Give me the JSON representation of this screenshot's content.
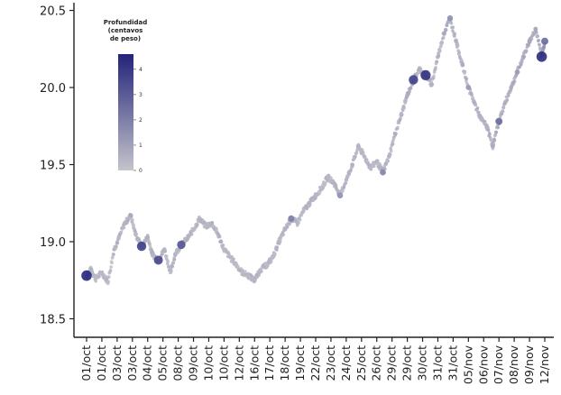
{
  "chart_data": {
    "type": "scatter",
    "title": "",
    "xlabel": "",
    "ylabel": "",
    "ylim": [
      18.38,
      20.55
    ],
    "yticks": [
      18.5,
      19.0,
      19.5,
      20.0,
      20.5
    ],
    "ytick_labels": [
      "18.5",
      "19.0",
      "19.5",
      "20.0",
      "20.5"
    ],
    "x_tick_labels": [
      "01/oct",
      "01/oct",
      "03/oct",
      "03/oct",
      "04/oct",
      "05/oct",
      "08/oct",
      "09/oct",
      "10/oct",
      "10/oct",
      "12/oct",
      "16/oct",
      "17/oct",
      "18/oct",
      "19/oct",
      "22/oct",
      "23/oct",
      "24/oct",
      "25/oct",
      "26/oct",
      "29/oct",
      "29/oct",
      "30/oct",
      "31/oct",
      "31/oct",
      "05/nov",
      "06/nov",
      "07/nov",
      "08/nov",
      "09/nov",
      "12/nov"
    ],
    "grid": false,
    "legend": {
      "title_lines": [
        "Profundidad",
        "(centavos",
        "de peso)"
      ],
      "ticks": [
        "0",
        "1",
        "2",
        "3",
        "4"
      ],
      "range": [
        0,
        4.6
      ],
      "placement": "top-left",
      "color_low": "#c4c4cc",
      "color_high": "#23237a"
    },
    "series": [
      {
        "x": [
          1.0,
          1.3,
          1.6,
          2.0,
          2.4,
          2.8,
          3.1,
          3.5,
          3.9,
          4.2,
          4.6,
          5.0,
          5.3,
          5.7,
          6.1,
          6.5,
          6.8,
          7.2,
          7.6,
          8.0,
          8.4,
          8.8,
          9.2,
          9.6,
          10.0,
          10.4,
          10.8,
          11.2,
          11.6,
          12.0,
          12.4,
          12.8,
          13.2,
          13.6,
          14.0,
          14.4,
          14.8,
          15.2,
          15.6,
          16.0,
          16.4,
          16.8,
          17.2,
          17.6,
          18.0,
          18.4,
          18.8,
          19.2,
          19.6,
          20.0,
          20.4,
          20.8,
          21.2,
          21.6,
          22.0,
          22.4,
          22.8,
          23.2,
          23.6,
          24.0,
          24.4,
          24.8,
          25.2,
          25.6,
          26.0,
          26.4,
          26.8,
          27.2,
          27.6,
          28.0,
          28.4,
          28.8,
          29.2,
          29.6,
          30.0,
          30.4,
          30.8,
          31.0
        ],
        "y": [
          18.78,
          18.82,
          18.76,
          18.8,
          18.74,
          18.95,
          19.02,
          19.12,
          19.17,
          19.05,
          18.97,
          19.03,
          18.92,
          18.88,
          18.95,
          18.8,
          18.92,
          18.98,
          19.02,
          19.08,
          19.15,
          19.1,
          19.12,
          19.05,
          18.95,
          18.9,
          18.85,
          18.8,
          18.78,
          18.75,
          18.82,
          18.85,
          18.9,
          19.0,
          19.08,
          19.15,
          19.12,
          19.2,
          19.25,
          19.3,
          19.35,
          19.42,
          19.38,
          19.3,
          19.4,
          19.5,
          19.62,
          19.55,
          19.48,
          19.52,
          19.45,
          19.55,
          19.7,
          19.82,
          19.95,
          20.05,
          20.12,
          20.08,
          20.02,
          20.2,
          20.35,
          20.45,
          20.3,
          20.15,
          20.0,
          19.9,
          19.8,
          19.75,
          19.62,
          19.78,
          19.9,
          20.0,
          20.1,
          20.2,
          20.3,
          20.38,
          20.2,
          20.3
        ],
        "depth": [
          4.5,
          0.5,
          0.2,
          0.3,
          0.2,
          0.4,
          0.3,
          0.5,
          0.8,
          0.3,
          3.8,
          0.6,
          0.5,
          3.5,
          0.5,
          0.3,
          0.4,
          3.2,
          0.5,
          0.3,
          0.4,
          0.3,
          0.6,
          0.5,
          0.4,
          0.3,
          0.2,
          0.2,
          0.3,
          0.4,
          0.3,
          0.2,
          0.3,
          0.4,
          0.5,
          2.0,
          0.4,
          0.3,
          0.5,
          0.4,
          0.3,
          0.4,
          0.5,
          1.5,
          0.4,
          0.6,
          0.5,
          0.4,
          0.3,
          0.5,
          1.8,
          0.4,
          0.6,
          0.5,
          0.7,
          3.8,
          0.5,
          4.2,
          0.6,
          0.5,
          0.8,
          1.5,
          0.6,
          0.7,
          1.2,
          0.6,
          0.5,
          0.6,
          0.8,
          2.5,
          0.6,
          0.7,
          1.2,
          0.8,
          0.9,
          0.8,
          4.4,
          2.5
        ]
      }
    ]
  }
}
